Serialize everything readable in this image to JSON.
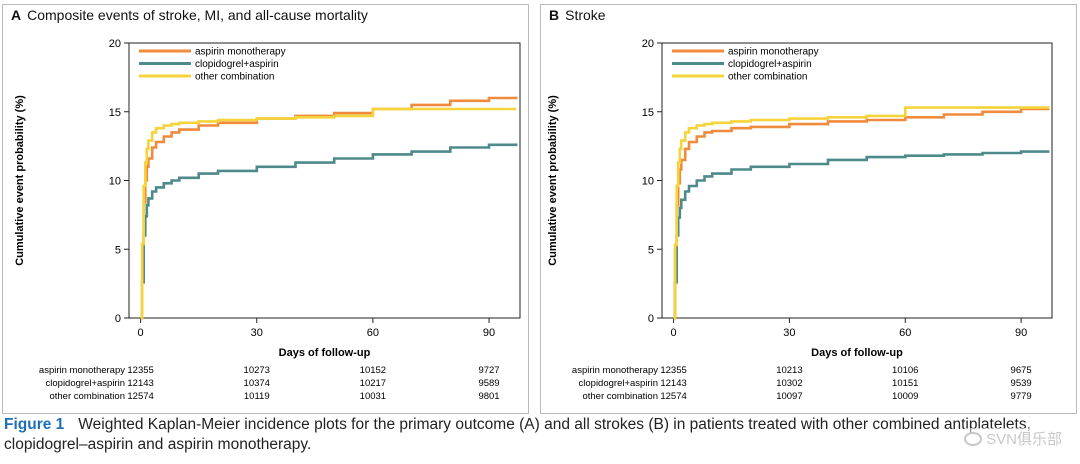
{
  "chart_data": [
    {
      "type": "line",
      "step": true,
      "panel_label": "A",
      "title": "Composite events of stroke, MI, and all-cause mortality",
      "xlabel": "Days of follow-up",
      "ylabel": "Cumulative event probability (%)",
      "xlim": [
        -3,
        98
      ],
      "ylim": [
        0,
        20
      ],
      "xticks": [
        0,
        30,
        60,
        90
      ],
      "yticks": [
        0,
        5,
        10,
        15,
        20
      ],
      "legend_position": "top-left",
      "series": [
        {
          "name": "aspirin monotherapy",
          "color": "#f08a3c",
          "x": [
            0,
            0.4,
            0.8,
            1.2,
            1.6,
            2,
            3,
            4,
            6,
            8,
            10,
            15,
            20,
            30,
            40,
            50,
            60,
            70,
            80,
            90,
            97
          ],
          "y": [
            0,
            5.2,
            8.4,
            10.0,
            11.0,
            11.6,
            12.4,
            12.8,
            13.2,
            13.5,
            13.7,
            14.0,
            14.2,
            14.5,
            14.7,
            14.9,
            15.2,
            15.5,
            15.8,
            16.0,
            16.1
          ]
        },
        {
          "name": "clopidogrel+aspirin",
          "color": "#4f8a8b",
          "x": [
            0,
            0.4,
            0.8,
            1.2,
            1.6,
            2,
            3,
            4,
            6,
            8,
            10,
            15,
            20,
            30,
            40,
            50,
            60,
            70,
            80,
            90,
            97
          ],
          "y": [
            0,
            2.6,
            6.0,
            7.4,
            8.2,
            8.7,
            9.2,
            9.5,
            9.8,
            10.0,
            10.2,
            10.5,
            10.7,
            11.0,
            11.3,
            11.6,
            11.9,
            12.1,
            12.4,
            12.6,
            12.7
          ]
        },
        {
          "name": "other combination",
          "color": "#f4d43a",
          "x": [
            0,
            0.4,
            0.8,
            1.2,
            1.6,
            2,
            3,
            4,
            6,
            8,
            10,
            15,
            20,
            30,
            40,
            50,
            58,
            60,
            70,
            80,
            90,
            97
          ],
          "y": [
            0,
            5.4,
            9.6,
            11.3,
            12.3,
            12.9,
            13.5,
            13.8,
            14.0,
            14.1,
            14.2,
            14.3,
            14.4,
            14.5,
            14.6,
            14.7,
            14.7,
            15.2,
            15.2,
            15.2,
            15.2,
            15.2
          ]
        }
      ],
      "risk_table": {
        "x": [
          0,
          30,
          60,
          90
        ],
        "rows": [
          {
            "label": "aspirin monotherapy",
            "values": [
              "12355",
              "10273",
              "10152",
              "9727"
            ]
          },
          {
            "label": "clopidogrel+aspirin",
            "values": [
              "12143",
              "10374",
              "10217",
              "9589"
            ]
          },
          {
            "label": "other combination",
            "values": [
              "12574",
              "10119",
              "10031",
              "9801"
            ]
          }
        ]
      }
    },
    {
      "type": "line",
      "step": true,
      "panel_label": "B",
      "title": "Stroke",
      "xlabel": "Days of follow-up",
      "ylabel": "Cumulative event probability (%)",
      "xlim": [
        -3,
        98
      ],
      "ylim": [
        0,
        20
      ],
      "xticks": [
        0,
        30,
        60,
        90
      ],
      "yticks": [
        0,
        5,
        10,
        15,
        20
      ],
      "legend_position": "top-left",
      "series": [
        {
          "name": "aspirin monotherapy",
          "color": "#f08a3c",
          "x": [
            0,
            0.4,
            0.8,
            1.2,
            1.6,
            2,
            3,
            4,
            6,
            8,
            10,
            15,
            20,
            30,
            40,
            50,
            60,
            70,
            80,
            90,
            97
          ],
          "y": [
            0,
            5.0,
            8.2,
            9.8,
            10.8,
            11.5,
            12.3,
            12.8,
            13.2,
            13.5,
            13.6,
            13.8,
            13.9,
            14.1,
            14.3,
            14.4,
            14.6,
            14.8,
            15.0,
            15.2,
            15.3
          ]
        },
        {
          "name": "clopidogrel+aspirin",
          "color": "#4f8a8b",
          "x": [
            0,
            0.4,
            0.8,
            1.2,
            1.6,
            2,
            3,
            4,
            6,
            8,
            10,
            15,
            20,
            30,
            40,
            50,
            60,
            70,
            80,
            90,
            97
          ],
          "y": [
            0,
            2.6,
            6.0,
            7.3,
            8.0,
            8.6,
            9.2,
            9.6,
            10.0,
            10.3,
            10.5,
            10.8,
            11.0,
            11.2,
            11.5,
            11.7,
            11.8,
            11.9,
            12.0,
            12.1,
            12.2
          ]
        },
        {
          "name": "other combination",
          "color": "#f4d43a",
          "x": [
            0,
            0.4,
            0.8,
            1.2,
            1.6,
            2,
            3,
            4,
            6,
            8,
            10,
            15,
            20,
            30,
            40,
            50,
            58,
            60,
            70,
            80,
            90,
            97
          ],
          "y": [
            0,
            5.3,
            9.6,
            11.3,
            12.3,
            12.9,
            13.5,
            13.8,
            14.0,
            14.1,
            14.2,
            14.3,
            14.4,
            14.5,
            14.6,
            14.7,
            14.7,
            15.3,
            15.3,
            15.3,
            15.3,
            15.4
          ]
        }
      ],
      "risk_table": {
        "x": [
          0,
          30,
          60,
          90
        ],
        "rows": [
          {
            "label": "aspirin monotherapy",
            "values": [
              "12355",
              "10213",
              "10106",
              "9675"
            ]
          },
          {
            "label": "clopidogrel+aspirin",
            "values": [
              "12143",
              "10302",
              "10151",
              "9539"
            ]
          },
          {
            "label": "other combination",
            "values": [
              "12574",
              "10097",
              "10009",
              "9779"
            ]
          }
        ]
      }
    }
  ],
  "caption": {
    "figure_label": "Figure 1",
    "text": "Weighted Kaplan-Meier incidence plots for the primary outcome (A) and all strokes (B) in patients treated with other combined antiplatelets, clopidogrel–aspirin and aspirin monotherapy."
  },
  "watermark": {
    "text": "SVN俱乐部"
  }
}
